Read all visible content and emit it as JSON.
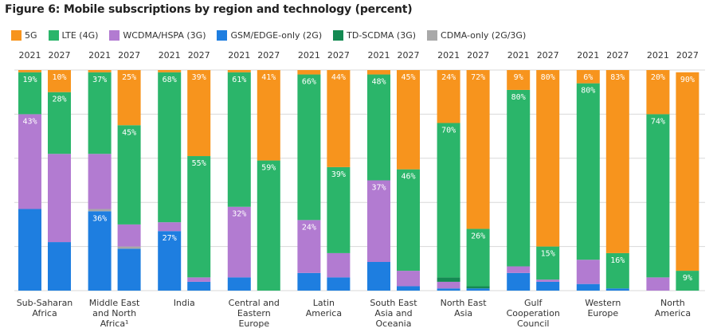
{
  "chart_data": {
    "type": "bar",
    "stacked": true,
    "title": "Figure 6: Mobile subscriptions by region and technology (percent)",
    "ylim": [
      0,
      100
    ],
    "grid": true,
    "legend_placement": "top-left",
    "legend": [
      {
        "name": "5G",
        "color": "#f7941d"
      },
      {
        "name": "LTE (4G)",
        "color": "#2bb56a"
      },
      {
        "name": "WCDMA/HSPA (3G)",
        "color": "#b27bd1"
      },
      {
        "name": "GSM/EDGE-only (2G)",
        "color": "#1e7ee0"
      },
      {
        "name": "TD-SCDMA (3G)",
        "color": "#148a52"
      },
      {
        "name": "CDMA-only (2G/3G)",
        "color": "#a8a8a8"
      }
    ],
    "stack_order_bottom_to_top": [
      "GSM/EDGE-only (2G)",
      "CDMA-only (2G/3G)",
      "WCDMA/HSPA (3G)",
      "TD-SCDMA (3G)",
      "LTE (4G)",
      "5G"
    ],
    "years": [
      "2021",
      "2027"
    ],
    "categories": [
      {
        "label": [
          "Sub-Saharan",
          "Africa"
        ],
        "bars": [
          {
            "year": "2021",
            "values": {
              "GSM/EDGE-only (2G)": 37,
              "CDMA-only (2G/3G)": 0,
              "WCDMA/HSPA (3G)": 43,
              "TD-SCDMA (3G)": 0,
              "LTE (4G)": 19,
              "5G": 1
            },
            "labels": {
              "LTE (4G)": "19%",
              "WCDMA/HSPA (3G)": "43%"
            }
          },
          {
            "year": "2027",
            "values": {
              "GSM/EDGE-only (2G)": 22,
              "CDMA-only (2G/3G)": 0,
              "WCDMA/HSPA (3G)": 40,
              "TD-SCDMA (3G)": 0,
              "LTE (4G)": 28,
              "5G": 10
            },
            "labels": {
              "5G": "10%",
              "LTE (4G)": "28%"
            }
          }
        ]
      },
      {
        "label": [
          "Middle East",
          "and North",
          "Africa¹"
        ],
        "bars": [
          {
            "year": "2021",
            "values": {
              "GSM/EDGE-only (2G)": 36,
              "CDMA-only (2G/3G)": 1,
              "WCDMA/HSPA (3G)": 25,
              "TD-SCDMA (3G)": 0,
              "LTE (4G)": 37,
              "5G": 1
            },
            "labels": {
              "LTE (4G)": "37%",
              "GSM/EDGE-only (2G)": "36%"
            }
          },
          {
            "year": "2027",
            "values": {
              "GSM/EDGE-only (2G)": 19,
              "CDMA-only (2G/3G)": 1,
              "WCDMA/HSPA (3G)": 10,
              "TD-SCDMA (3G)": 0,
              "LTE (4G)": 45,
              "5G": 25
            },
            "labels": {
              "5G": "25%",
              "LTE (4G)": "45%"
            }
          }
        ]
      },
      {
        "label": [
          "India"
        ],
        "bars": [
          {
            "year": "2021",
            "values": {
              "GSM/EDGE-only (2G)": 27,
              "CDMA-only (2G/3G)": 0,
              "WCDMA/HSPA (3G)": 4,
              "TD-SCDMA (3G)": 0,
              "LTE (4G)": 68,
              "5G": 1
            },
            "labels": {
              "LTE (4G)": "68%",
              "GSM/EDGE-only (2G)": "27%"
            }
          },
          {
            "year": "2027",
            "values": {
              "GSM/EDGE-only (2G)": 4,
              "CDMA-only (2G/3G)": 0,
              "WCDMA/HSPA (3G)": 2,
              "TD-SCDMA (3G)": 0,
              "LTE (4G)": 55,
              "5G": 39
            },
            "labels": {
              "5G": "39%",
              "LTE (4G)": "55%"
            }
          }
        ]
      },
      {
        "label": [
          "Central and",
          "Eastern",
          "Europe"
        ],
        "bars": [
          {
            "year": "2021",
            "values": {
              "GSM/EDGE-only (2G)": 6,
              "CDMA-only (2G/3G)": 0,
              "WCDMA/HSPA (3G)": 32,
              "TD-SCDMA (3G)": 0,
              "LTE (4G)": 61,
              "5G": 1
            },
            "labels": {
              "LTE (4G)": "61%",
              "WCDMA/HSPA (3G)": "32%"
            }
          },
          {
            "year": "2027",
            "values": {
              "GSM/EDGE-only (2G)": 0,
              "CDMA-only (2G/3G)": 0,
              "WCDMA/HSPA (3G)": 0,
              "TD-SCDMA (3G)": 0,
              "LTE (4G)": 59,
              "5G": 41
            },
            "labels": {
              "5G": "41%",
              "LTE (4G)": "59%"
            }
          }
        ]
      },
      {
        "label": [
          "Latin",
          "America"
        ],
        "bars": [
          {
            "year": "2021",
            "values": {
              "GSM/EDGE-only (2G)": 8,
              "CDMA-only (2G/3G)": 0,
              "WCDMA/HSPA (3G)": 24,
              "TD-SCDMA (3G)": 0,
              "LTE (4G)": 66,
              "5G": 2
            },
            "labels": {
              "LTE (4G)": "66%",
              "WCDMA/HSPA (3G)": "24%"
            }
          },
          {
            "year": "2027",
            "values": {
              "GSM/EDGE-only (2G)": 6,
              "CDMA-only (2G/3G)": 0,
              "WCDMA/HSPA (3G)": 11,
              "TD-SCDMA (3G)": 0,
              "LTE (4G)": 39,
              "5G": 44
            },
            "labels": {
              "5G": "44%",
              "LTE (4G)": "39%"
            }
          }
        ]
      },
      {
        "label": [
          "South East",
          "Asia and",
          "Oceania"
        ],
        "bars": [
          {
            "year": "2021",
            "values": {
              "GSM/EDGE-only (2G)": 13,
              "CDMA-only (2G/3G)": 0,
              "WCDMA/HSPA (3G)": 37,
              "TD-SCDMA (3G)": 0,
              "LTE (4G)": 48,
              "5G": 2
            },
            "labels": {
              "LTE (4G)": "48%",
              "WCDMA/HSPA (3G)": "37%"
            }
          },
          {
            "year": "2027",
            "values": {
              "GSM/EDGE-only (2G)": 2,
              "CDMA-only (2G/3G)": 0,
              "WCDMA/HSPA (3G)": 7,
              "TD-SCDMA (3G)": 0,
              "LTE (4G)": 46,
              "5G": 45
            },
            "labels": {
              "5G": "45%",
              "LTE (4G)": "46%"
            }
          }
        ]
      },
      {
        "label": [
          "North East",
          "Asia"
        ],
        "bars": [
          {
            "year": "2021",
            "values": {
              "GSM/EDGE-only (2G)": 1,
              "CDMA-only (2G/3G)": 0,
              "WCDMA/HSPA (3G)": 3,
              "TD-SCDMA (3G)": 2,
              "LTE (4G)": 70,
              "5G": 24
            },
            "labels": {
              "5G": "24%",
              "LTE (4G)": "70%"
            }
          },
          {
            "year": "2027",
            "values": {
              "GSM/EDGE-only (2G)": 1,
              "CDMA-only (2G/3G)": 0,
              "WCDMA/HSPA (3G)": 0,
              "TD-SCDMA (3G)": 1,
              "LTE (4G)": 26,
              "5G": 72
            },
            "labels": {
              "5G": "72%",
              "LTE (4G)": "26%"
            }
          }
        ]
      },
      {
        "label": [
          "Gulf",
          "Cooperation",
          "Council"
        ],
        "bars": [
          {
            "year": "2021",
            "values": {
              "GSM/EDGE-only (2G)": 8,
              "CDMA-only (2G/3G)": 0,
              "WCDMA/HSPA (3G)": 3,
              "TD-SCDMA (3G)": 0,
              "LTE (4G)": 80,
              "5G": 9
            },
            "labels": {
              "5G": "9%",
              "LTE (4G)": "80%"
            }
          },
          {
            "year": "2027",
            "values": {
              "GSM/EDGE-only (2G)": 4,
              "CDMA-only (2G/3G)": 0,
              "WCDMA/HSPA (3G)": 1,
              "TD-SCDMA (3G)": 0,
              "LTE (4G)": 15,
              "5G": 80
            },
            "labels": {
              "5G": "80%",
              "LTE (4G)": "15%"
            }
          }
        ]
      },
      {
        "label": [
          "Western",
          "Europe"
        ],
        "bars": [
          {
            "year": "2021",
            "values": {
              "GSM/EDGE-only (2G)": 3,
              "CDMA-only (2G/3G)": 0,
              "WCDMA/HSPA (3G)": 11,
              "TD-SCDMA (3G)": 0,
              "LTE (4G)": 80,
              "5G": 6
            },
            "labels": {
              "5G": "6%",
              "LTE (4G)": "80%"
            }
          },
          {
            "year": "2027",
            "values": {
              "GSM/EDGE-only (2G)": 1,
              "CDMA-only (2G/3G)": 0,
              "WCDMA/HSPA (3G)": 0,
              "TD-SCDMA (3G)": 0,
              "LTE (4G)": 16,
              "5G": 83
            },
            "labels": {
              "5G": "83%",
              "LTE (4G)": "16%"
            }
          }
        ]
      },
      {
        "label": [
          "North",
          "America"
        ],
        "bars": [
          {
            "year": "2021",
            "values": {
              "GSM/EDGE-only (2G)": 0,
              "CDMA-only (2G/3G)": 0,
              "WCDMA/HSPA (3G)": 6,
              "TD-SCDMA (3G)": 0,
              "LTE (4G)": 74,
              "5G": 20
            },
            "labels": {
              "5G": "20%",
              "LTE (4G)": "74%"
            }
          },
          {
            "year": "2027",
            "values": {
              "GSM/EDGE-only (2G)": 0,
              "CDMA-only (2G/3G)": 0,
              "WCDMA/HSPA (3G)": 0,
              "TD-SCDMA (3G)": 0,
              "LTE (4G)": 9,
              "5G": 90
            },
            "labels": {
              "5G": "90%",
              "LTE (4G)": "9%"
            }
          }
        ]
      }
    ]
  }
}
